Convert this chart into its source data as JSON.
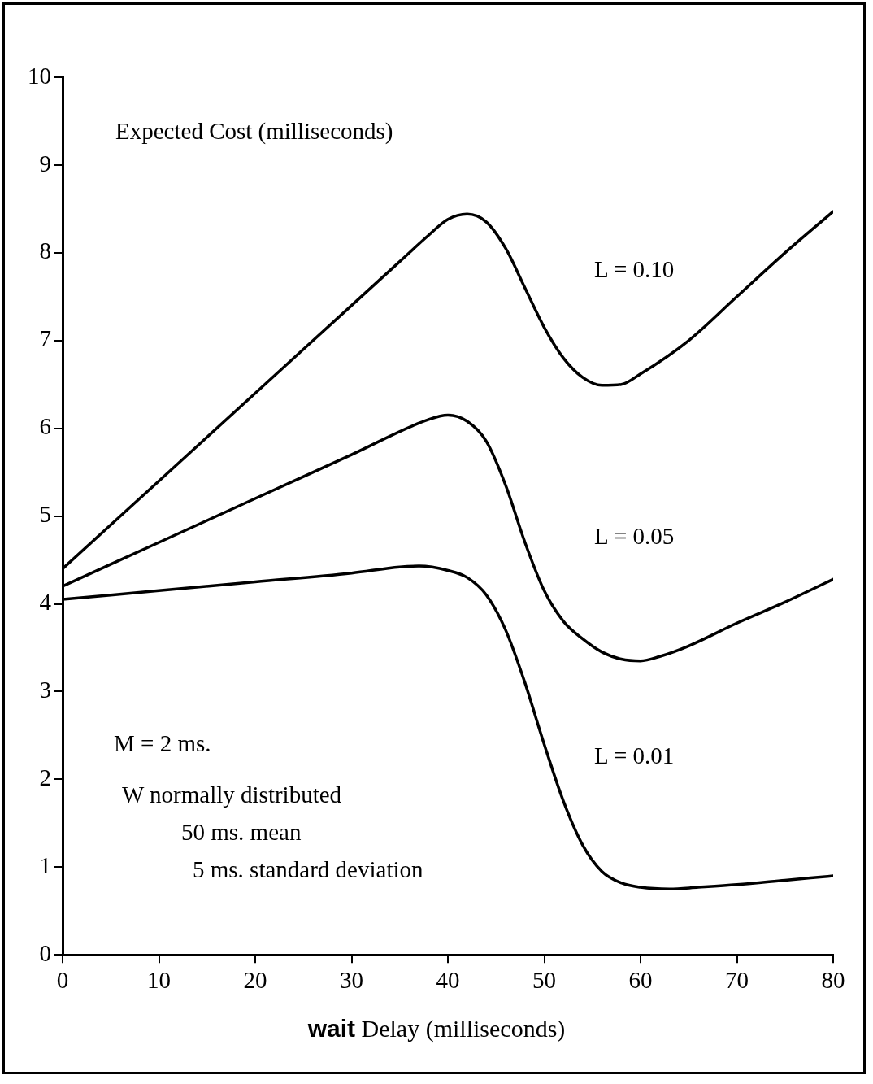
{
  "chart_data": {
    "type": "line",
    "ylabel": "Expected Cost (milliseconds)",
    "xlabel": "wait Delay (milliseconds)",
    "xlim": [
      0,
      80
    ],
    "xticks": [
      0,
      10,
      20,
      30,
      40,
      50,
      60,
      70,
      80
    ],
    "ylim": [
      0,
      10
    ],
    "yticks": [
      0,
      1,
      2,
      3,
      4,
      5,
      6,
      7,
      8,
      9,
      10
    ],
    "grid": false,
    "legend": false,
    "marker": "none",
    "line_style": "solid",
    "annotations": [
      "M = 2 ms.",
      "W normally distributed",
      "50 ms. mean",
      "5 ms. standard deviation"
    ],
    "series": [
      {
        "name": "L = 0.10",
        "color": "#000000",
        "x": [
          0,
          10,
          20,
          30,
          35,
          38,
          40,
          42,
          44,
          46,
          48,
          50,
          52,
          54,
          56,
          58,
          60,
          65,
          70,
          75,
          80
        ],
        "values": [
          4.4,
          5.4,
          6.4,
          7.4,
          7.9,
          8.2,
          8.38,
          8.44,
          8.35,
          8.05,
          7.6,
          7.15,
          6.8,
          6.58,
          6.49,
          6.5,
          6.62,
          7.0,
          7.5,
          8.0,
          8.47
        ]
      },
      {
        "name": "L = 0.05",
        "color": "#000000",
        "x": [
          0,
          10,
          20,
          30,
          38,
          40,
          42,
          44,
          46,
          48,
          50,
          52,
          54,
          56,
          58,
          60,
          62,
          65,
          70,
          75,
          80
        ],
        "values": [
          4.2,
          4.7,
          5.2,
          5.7,
          6.1,
          6.15,
          6.08,
          5.85,
          5.35,
          4.7,
          4.15,
          3.8,
          3.6,
          3.45,
          3.37,
          3.35,
          3.4,
          3.52,
          3.78,
          4.02,
          4.28
        ]
      },
      {
        "name": "L = 0.01",
        "color": "#000000",
        "x": [
          0,
          10,
          20,
          30,
          35,
          37,
          40,
          42,
          44,
          46,
          48,
          50,
          52,
          54,
          56,
          58,
          60,
          63,
          66,
          70,
          75,
          80
        ],
        "values": [
          4.05,
          4.15,
          4.25,
          4.35,
          4.42,
          4.43,
          4.38,
          4.3,
          4.1,
          3.7,
          3.1,
          2.4,
          1.75,
          1.25,
          0.95,
          0.82,
          0.77,
          0.75,
          0.77,
          0.8,
          0.85,
          0.9
        ]
      }
    ]
  }
}
